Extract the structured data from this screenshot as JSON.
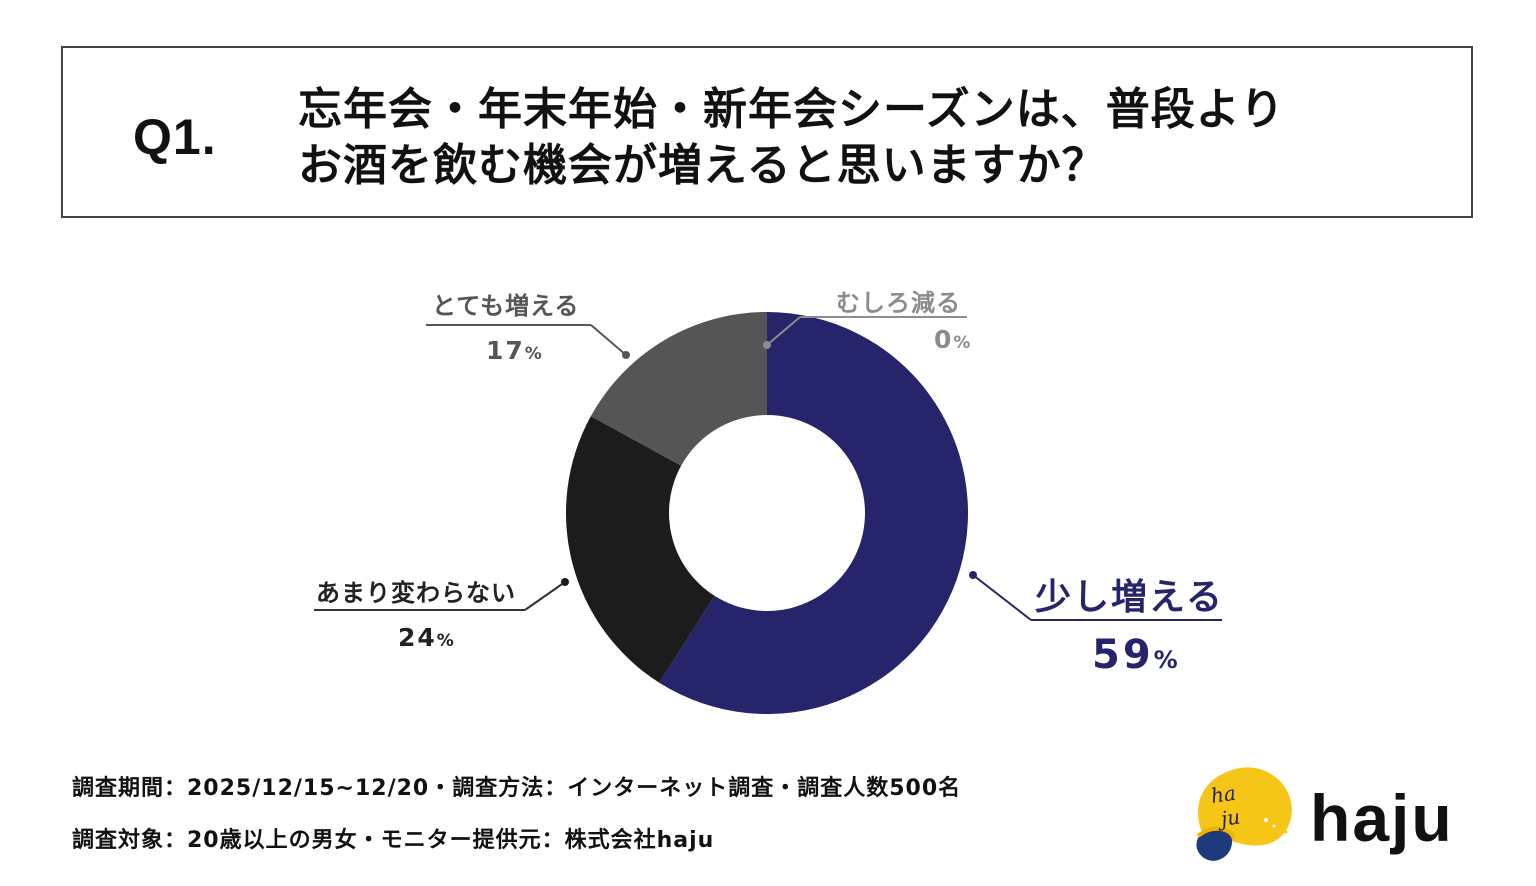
{
  "question": {
    "label": "Q1.",
    "line1": "忘年会・年末年始・新年会シーズンは、普段より",
    "line2": "お酒を飲む機会が増えると思いますか？"
  },
  "labels": {
    "totemo": {
      "name": "とても増える",
      "value": "17",
      "unit": "%"
    },
    "mushiro": {
      "name": "むしろ減る",
      "value": "0",
      "unit": "%"
    },
    "amari": {
      "name": "あまり変わらない",
      "value": "24",
      "unit": "%"
    },
    "sukoshi": {
      "name": "少し増える",
      "value": "59",
      "unit": "%"
    }
  },
  "footer": {
    "line1": "調査期間：2025/12/15~12/20・調査方法：インターネット調査・調査人数500名",
    "line2": "調査対象：20歳以上の男女・モニター提供元：株式会社haju"
  },
  "logo": {
    "text": "haju",
    "mark_script": "haju",
    "icon": "haju-logo-icon"
  },
  "colors": {
    "navy": "#26246b",
    "black": "#1c1c1c",
    "gray": "#555555",
    "light_gray": "#8c8c8c",
    "logo_yellow": "#f5c518",
    "logo_navy": "#1f3a7a"
  },
  "chart_data": {
    "type": "pie",
    "variant": "donut",
    "title": "Q1. 忘年会・年末年始・新年会シーズンは、普段よりお酒を飲む機会が増えると思いますか？",
    "categories": [
      "少し増える",
      "あまり変わらない",
      "とても増える",
      "むしろ減る"
    ],
    "values": [
      59,
      24,
      17,
      0
    ],
    "unit": "%",
    "colors": [
      "#26246b",
      "#1c1c1c",
      "#555555",
      "#8c8c8c"
    ],
    "start_angle": "12 o'clock, clockwise",
    "legend": "callout labels",
    "notes": "調査人数500名"
  }
}
